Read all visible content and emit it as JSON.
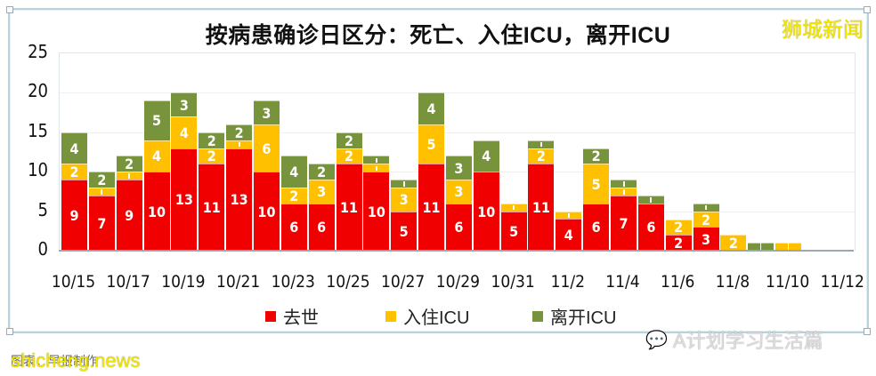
{
  "chart_data": {
    "type": "bar",
    "stacked": true,
    "title": "按病患确诊日区分：死亡、入住ICU，离开ICU",
    "xlabel": "",
    "ylabel": "",
    "ylim": [
      0,
      25
    ],
    "yticks": [
      0,
      5,
      10,
      15,
      20,
      25
    ],
    "grid": true,
    "legend_position": "bottom",
    "categories": [
      "10/15",
      "10/16",
      "10/17",
      "10/18",
      "10/19",
      "10/20",
      "10/21",
      "10/22",
      "10/23",
      "10/24",
      "10/25",
      "10/26",
      "10/27",
      "10/28",
      "10/29",
      "10/30",
      "10/31",
      "11/1",
      "11/2",
      "11/3",
      "11/4",
      "11/5",
      "11/6",
      "11/7",
      "11/8",
      "11/9",
      "11/10"
    ],
    "xtick_labels": [
      "10/15",
      "10/17",
      "10/19",
      "10/21",
      "10/23",
      "10/25",
      "10/27",
      "10/29",
      "10/31",
      "11/2",
      "11/4",
      "11/6",
      "11/8",
      "11/10",
      "11/12"
    ],
    "series": [
      {
        "name": "去世",
        "color": "#f00000",
        "values": [
          9,
          7,
          9,
          10,
          13,
          11,
          13,
          10,
          6,
          6,
          11,
          10,
          5,
          11,
          6,
          10,
          5,
          11,
          4,
          6,
          7,
          6,
          2,
          3,
          0,
          0,
          0
        ]
      },
      {
        "name": "入住ICU",
        "color": "#ffc000",
        "values": [
          2,
          1,
          1,
          4,
          4,
          2,
          1,
          6,
          2,
          3,
          2,
          1,
          3,
          5,
          3,
          0,
          1,
          2,
          1,
          5,
          1,
          0,
          2,
          2,
          2,
          0,
          1
        ]
      },
      {
        "name": "离开ICU",
        "color": "#77933c",
        "values": [
          4,
          2,
          2,
          5,
          3,
          2,
          2,
          3,
          4,
          2,
          2,
          1,
          1,
          4,
          3,
          4,
          0,
          1,
          0,
          2,
          1,
          1,
          0,
          1,
          0,
          1,
          0
        ]
      }
    ]
  },
  "header": {
    "title": "按病患确诊日区分：死亡、入住ICU，离开ICU",
    "watermark": "狮城新闻"
  },
  "legend": [
    {
      "label": "去世",
      "color": "#f00000"
    },
    {
      "label": "入住ICU",
      "color": "#ffc000"
    },
    {
      "label": "离开ICU",
      "color": "#77933c"
    }
  ],
  "footer": {
    "caption": "图表：早报制作",
    "site_watermark": "shicheng.news",
    "wechat_watermark": "A计划学习生活篇"
  }
}
